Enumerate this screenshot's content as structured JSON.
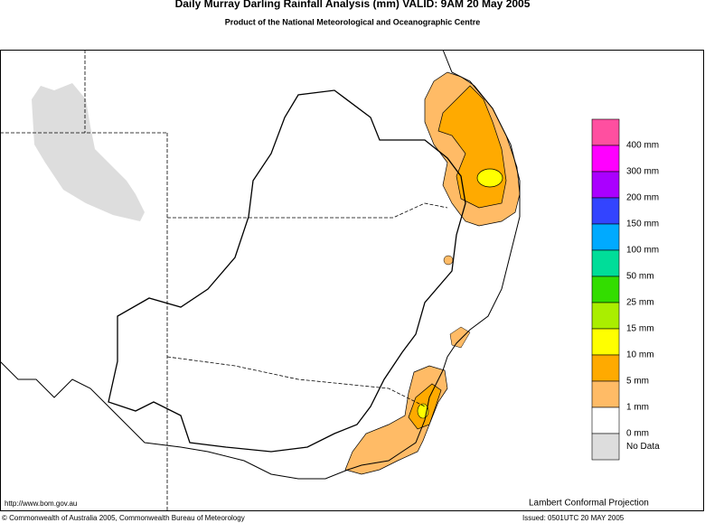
{
  "header": {
    "title": "Daily Murray Darling Rainfall Analysis (mm)  VALID: 9AM 20 May 2005",
    "subtitle": "Product of the National Meteorological and Oceanographic Centre"
  },
  "legend": {
    "colors": [
      "#ff4fa0",
      "#ff00ff",
      "#aa00ff",
      "#3344ff",
      "#00aaff",
      "#00dd99",
      "#33dd00",
      "#aaee00",
      "#ffff00",
      "#ffaa00",
      "#ffbb66",
      "#ffffff",
      "#dddddd"
    ],
    "labels": [
      "400 mm",
      "300 mm",
      "200 mm",
      "150 mm",
      "100 mm",
      "50 mm",
      "25 mm",
      "15 mm",
      "10 mm",
      "5 mm",
      "1 mm",
      "0 mm"
    ],
    "no_data": "No Data"
  },
  "footer": {
    "url": "http://www.bom.gov.au",
    "projection": "Lambert Conformal Projection",
    "copyright": "© Commonwealth of Australia 2005, Commonwealth Bureau of Meteorology",
    "issued": "Issued: 0501UTC 20 MAY 2005"
  }
}
